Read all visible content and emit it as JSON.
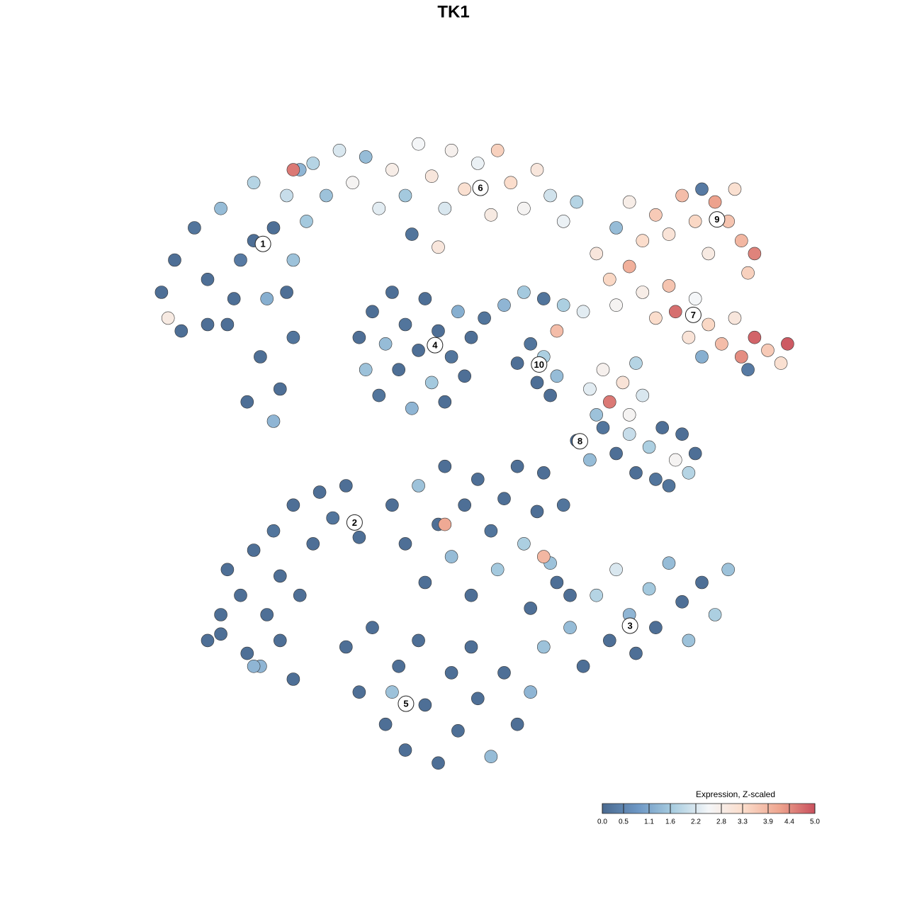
{
  "chart_data": {
    "type": "scatter",
    "title": "TK1",
    "xlim": [
      -50,
      50
    ],
    "ylim": [
      -50,
      50
    ],
    "point_color_scale": [
      "#4a6a90",
      "#6d97c4",
      "#a9cde0",
      "#f4f6f8",
      "#fbdcca",
      "#eea58f",
      "#c9505d"
    ],
    "points": [
      [
        -47,
        25,
        0.1
      ],
      [
        -45,
        30,
        0.1
      ],
      [
        -42,
        35,
        0.2
      ],
      [
        -40,
        27,
        0.1
      ],
      [
        -38,
        38,
        1.4
      ],
      [
        -37,
        20,
        0.1
      ],
      [
        -35,
        30,
        0.3
      ],
      [
        -33,
        42,
        1.8
      ],
      [
        -32,
        15,
        0.1
      ],
      [
        -31,
        24,
        1.2
      ],
      [
        -30,
        35,
        0.1
      ],
      [
        -29,
        10,
        0.1
      ],
      [
        -28,
        40,
        2.0
      ],
      [
        -27,
        18,
        0.2
      ],
      [
        -27,
        30,
        1.5
      ],
      [
        -26,
        44,
        1.3
      ],
      [
        -34,
        8,
        0.1
      ],
      [
        -30,
        5,
        1.3
      ],
      [
        -40,
        20,
        0.1
      ],
      [
        -44,
        19,
        0.1
      ],
      [
        -46,
        21,
        2.9
      ],
      [
        -36,
        24,
        0.1
      ],
      [
        -33,
        33,
        0.1
      ],
      [
        -28,
        25,
        0.1
      ],
      [
        -25,
        36,
        1.6
      ],
      [
        -24,
        45,
        1.8
      ],
      [
        -22,
        40,
        1.5
      ],
      [
        -20,
        47,
        2.2
      ],
      [
        -18,
        42,
        2.6
      ],
      [
        -16,
        46,
        1.4
      ],
      [
        -14,
        38,
        2.3
      ],
      [
        -12,
        44,
        2.8
      ],
      [
        -10,
        40,
        1.6
      ],
      [
        -8,
        48,
        2.5
      ],
      [
        -6,
        43,
        3.0
      ],
      [
        -4,
        38,
        2.2
      ],
      [
        -3,
        47,
        2.7
      ],
      [
        -1,
        41,
        3.2
      ],
      [
        1,
        45,
        2.4
      ],
      [
        3,
        37,
        2.9
      ],
      [
        4,
        47,
        3.5
      ],
      [
        6,
        42,
        3.3
      ],
      [
        8,
        38,
        2.6
      ],
      [
        10,
        44,
        3.0
      ],
      [
        12,
        40,
        2.1
      ],
      [
        14,
        36,
        2.4
      ],
      [
        16,
        39,
        1.8
      ],
      [
        -9,
        34,
        0.2
      ],
      [
        -5,
        32,
        3.0
      ],
      [
        -27,
        44,
        4.6
      ],
      [
        22,
        35,
        1.4
      ],
      [
        24,
        39,
        2.8
      ],
      [
        26,
        33,
        3.3
      ],
      [
        28,
        37,
        3.6
      ],
      [
        30,
        34,
        3.1
      ],
      [
        32,
        40,
        3.8
      ],
      [
        34,
        36,
        3.4
      ],
      [
        36,
        31,
        2.9
      ],
      [
        37,
        39,
        4.2
      ],
      [
        39,
        36,
        3.7
      ],
      [
        41,
        33,
        3.9
      ],
      [
        42,
        28,
        3.5
      ],
      [
        43,
        31,
        4.5
      ],
      [
        40,
        41,
        3.2
      ],
      [
        35,
        41,
        0.3
      ],
      [
        19,
        31,
        3.0
      ],
      [
        21,
        27,
        3.4
      ],
      [
        22,
        23,
        2.6
      ],
      [
        24,
        29,
        4.0
      ],
      [
        26,
        25,
        2.8
      ],
      [
        28,
        21,
        3.3
      ],
      [
        30,
        26,
        3.7
      ],
      [
        31,
        22,
        4.7
      ],
      [
        33,
        18,
        3.1
      ],
      [
        34,
        24,
        2.5
      ],
      [
        36,
        20,
        3.4
      ],
      [
        38,
        17,
        3.8
      ],
      [
        40,
        21,
        3.0
      ],
      [
        41,
        15,
        4.4
      ],
      [
        43,
        18,
        4.8
      ],
      [
        45,
        16,
        3.6
      ],
      [
        47,
        14,
        3.2
      ],
      [
        48,
        17,
        4.9
      ],
      [
        35,
        15,
        1.2
      ],
      [
        42,
        13,
        0.3
      ],
      [
        2,
        21,
        0.2
      ],
      [
        5,
        23,
        1.3
      ],
      [
        8,
        25,
        1.6
      ],
      [
        11,
        24,
        0.2
      ],
      [
        14,
        23,
        1.7
      ],
      [
        17,
        22,
        2.3
      ],
      [
        13,
        19,
        3.8
      ],
      [
        -17,
        18,
        0.1
      ],
      [
        -16,
        13,
        1.5
      ],
      [
        -15,
        22,
        0.1
      ],
      [
        -14,
        9,
        0.2
      ],
      [
        -13,
        17,
        1.4
      ],
      [
        -12,
        25,
        0.1
      ],
      [
        -11,
        13,
        0.1
      ],
      [
        -10,
        20,
        0.2
      ],
      [
        -9,
        7,
        1.3
      ],
      [
        -8,
        16,
        0.1
      ],
      [
        -7,
        24,
        0.1
      ],
      [
        -6,
        11,
        1.6
      ],
      [
        -5,
        19,
        0.1
      ],
      [
        -4,
        8,
        0.1
      ],
      [
        -3,
        15,
        0.2
      ],
      [
        -2,
        22,
        1.2
      ],
      [
        -1,
        12,
        0.1
      ],
      [
        0,
        18,
        0.1
      ],
      [
        7,
        14,
        0.1
      ],
      [
        9,
        17,
        0.2
      ],
      [
        10,
        11,
        0.1
      ],
      [
        11,
        15,
        1.7
      ],
      [
        12,
        9,
        0.1
      ],
      [
        13,
        12,
        1.4
      ],
      [
        18,
        10,
        2.3
      ],
      [
        19,
        6,
        1.5
      ],
      [
        20,
        13,
        2.7
      ],
      [
        21,
        8,
        4.6
      ],
      [
        23,
        11,
        3.1
      ],
      [
        24,
        6,
        2.6
      ],
      [
        25,
        14,
        1.8
      ],
      [
        26,
        9,
        2.2
      ],
      [
        16,
        2,
        0.1
      ],
      [
        18,
        -1,
        1.4
      ],
      [
        20,
        4,
        0.2
      ],
      [
        22,
        0,
        0.1
      ],
      [
        24,
        3,
        2.0
      ],
      [
        25,
        -3,
        0.1
      ],
      [
        27,
        1,
        1.7
      ],
      [
        28,
        -4,
        0.2
      ],
      [
        29,
        4,
        0.1
      ],
      [
        31,
        -1,
        2.6
      ],
      [
        32,
        3,
        0.1
      ],
      [
        33,
        -3,
        1.8
      ],
      [
        34,
        0,
        0.1
      ],
      [
        30,
        -5,
        0.2
      ],
      [
        -37,
        -18,
        0.1
      ],
      [
        -35,
        -22,
        0.1
      ],
      [
        -33,
        -15,
        0.1
      ],
      [
        -31,
        -25,
        0.1
      ],
      [
        -30,
        -12,
        0.2
      ],
      [
        -29,
        -19,
        0.1
      ],
      [
        -27,
        -8,
        0.1
      ],
      [
        -26,
        -22,
        0.1
      ],
      [
        -24,
        -14,
        0.1
      ],
      [
        -23,
        -6,
        0.1
      ],
      [
        -21,
        -10,
        0.2
      ],
      [
        -19,
        -5,
        0.1
      ],
      [
        -17,
        -13,
        0.1
      ],
      [
        -38,
        -28,
        0.1
      ],
      [
        -34,
        -31,
        0.1
      ],
      [
        -32,
        -33,
        1.3
      ],
      [
        -29,
        -29,
        0.1
      ],
      [
        -27,
        -35,
        0.1
      ],
      [
        -12,
        -8,
        0.1
      ],
      [
        -10,
        -14,
        0.1
      ],
      [
        -8,
        -5,
        1.5
      ],
      [
        -7,
        -20,
        0.1
      ],
      [
        -5,
        -11,
        0.1
      ],
      [
        -4,
        -2,
        0.1
      ],
      [
        -3,
        -16,
        1.4
      ],
      [
        -1,
        -8,
        0.1
      ],
      [
        0,
        -22,
        0.1
      ],
      [
        1,
        -4,
        0.1
      ],
      [
        3,
        -12,
        0.2
      ],
      [
        4,
        -18,
        1.6
      ],
      [
        5,
        -7,
        0.1
      ],
      [
        7,
        -2,
        0.1
      ],
      [
        8,
        -14,
        1.7
      ],
      [
        10,
        -9,
        0.1
      ],
      [
        11,
        -3,
        0.1
      ],
      [
        12,
        -17,
        1.5
      ],
      [
        14,
        -8,
        0.2
      ],
      [
        15,
        -22,
        0.1
      ],
      [
        -4,
        -11,
        4.1
      ],
      [
        11,
        -16,
        3.9
      ],
      [
        9,
        -24,
        0.1
      ],
      [
        11,
        -30,
        1.5
      ],
      [
        13,
        -20,
        0.1
      ],
      [
        15,
        -27,
        1.4
      ],
      [
        17,
        -33,
        0.1
      ],
      [
        19,
        -22,
        1.8
      ],
      [
        21,
        -29,
        0.1
      ],
      [
        22,
        -18,
        2.2
      ],
      [
        24,
        -25,
        1.3
      ],
      [
        25,
        -31,
        0.1
      ],
      [
        27,
        -21,
        1.6
      ],
      [
        28,
        -27,
        0.1
      ],
      [
        30,
        -17,
        1.4
      ],
      [
        32,
        -23,
        0.1
      ],
      [
        33,
        -29,
        1.5
      ],
      [
        35,
        -20,
        0.1
      ],
      [
        37,
        -25,
        1.7
      ],
      [
        39,
        -18,
        1.5
      ],
      [
        -19,
        -30,
        0.1
      ],
      [
        -17,
        -37,
        0.1
      ],
      [
        -15,
        -27,
        0.1
      ],
      [
        -13,
        -42,
        0.1
      ],
      [
        -11,
        -33,
        0.1
      ],
      [
        -10,
        -46,
        0.1
      ],
      [
        -8,
        -29,
        0.1
      ],
      [
        -7,
        -39,
        0.1
      ],
      [
        -5,
        -48,
        0.1
      ],
      [
        -3,
        -34,
        0.1
      ],
      [
        -2,
        -43,
        0.1
      ],
      [
        0,
        -30,
        0.1
      ],
      [
        1,
        -38,
        0.1
      ],
      [
        3,
        -47,
        1.4
      ],
      [
        5,
        -34,
        0.1
      ],
      [
        7,
        -42,
        0.1
      ],
      [
        9,
        -37,
        1.3
      ],
      [
        -12,
        -37,
        1.5
      ],
      [
        -40,
        -29,
        0.1
      ],
      [
        -38,
        -25,
        0.1
      ],
      [
        -33,
        -33,
        1.3
      ]
    ],
    "cluster_labels": [
      {
        "label": "1",
        "x": -31.6,
        "y": 32.5
      },
      {
        "label": "2",
        "x": -17.7,
        "y": -10.7
      },
      {
        "label": "3",
        "x": 24.1,
        "y": -26.7
      },
      {
        "label": "4",
        "x": -5.5,
        "y": 16.8
      },
      {
        "label": "5",
        "x": -9.9,
        "y": -38.8
      },
      {
        "label": "6",
        "x": 1.4,
        "y": 41.2
      },
      {
        "label": "7",
        "x": 33.7,
        "y": 21.5
      },
      {
        "label": "8",
        "x": 16.5,
        "y": 1.9
      },
      {
        "label": "9",
        "x": 37.3,
        "y": 36.3
      },
      {
        "label": "10",
        "x": 10.3,
        "y": 13.8
      }
    ],
    "colorbar": {
      "title": "Expression, Z-scaled",
      "lim": [
        0,
        5
      ],
      "ticks": [
        {
          "value": 0,
          "label": "0.0"
        },
        0.5,
        1.1,
        1.6,
        2.2,
        2.8,
        3.3,
        3.9,
        4.4,
        {
          "value": 5,
          "label": "5.0"
        }
      ]
    }
  }
}
